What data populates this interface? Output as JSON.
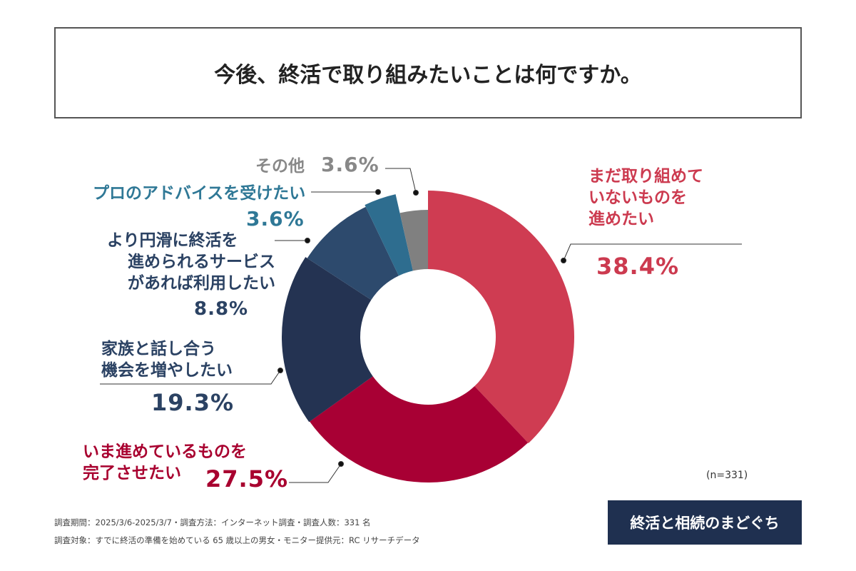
{
  "title": "今後、終活で取り組みたいことは何ですか。",
  "chart_data": {
    "type": "pie",
    "title": "今後、終活で取り組みたいことは何ですか。",
    "categories": [
      "まだ取り組めていないものを進めたい",
      "いま進めているものを完了させたい",
      "家族と話し合う機会を増やしたい",
      "より円滑に終活を進められるサービスがあれば利用したい",
      "プロのアドバイスを受けたい",
      "その他"
    ],
    "values": [
      38.4,
      27.5,
      19.3,
      8.8,
      3.6,
      3.6
    ],
    "value_labels": [
      "38.4%",
      "27.5%",
      "19.3%",
      "8.8%",
      "3.6%",
      "3.6%"
    ],
    "colors": [
      "#cf3c52",
      "#a80034",
      "#243352",
      "#2d4a6d",
      "#2e6d8f",
      "#808080"
    ],
    "label_colors": [
      "#cc3a4f",
      "#a8002f",
      "#2b4263",
      "#2b4263",
      "#2f7896",
      "#888888"
    ],
    "donut": true
  },
  "labels": {
    "l0": [
      "まだ取り組めて",
      "いないものを",
      "進めたい"
    ],
    "l1": [
      "いま進めているものを",
      "完了させたい"
    ],
    "l2": [
      "家族と話し合う",
      "機会を増やしたい"
    ],
    "l3": [
      "より円滑に終活を",
      "進められるサービス",
      "があれば利用したい"
    ],
    "l4": "プロのアドバイスを受けたい",
    "l5": "その他"
  },
  "sample": "(n=331)",
  "footer": {
    "line1": "調査期間：2025/3/6-2025/3/7・調査方法：インターネット調査・調査人数：331 名",
    "line2": "調査対象：すでに終活の準備を始めている 65 歳以上の男女・モニター提供元：RC リサーチデータ"
  },
  "logo": "終活と相続のまどぐち"
}
